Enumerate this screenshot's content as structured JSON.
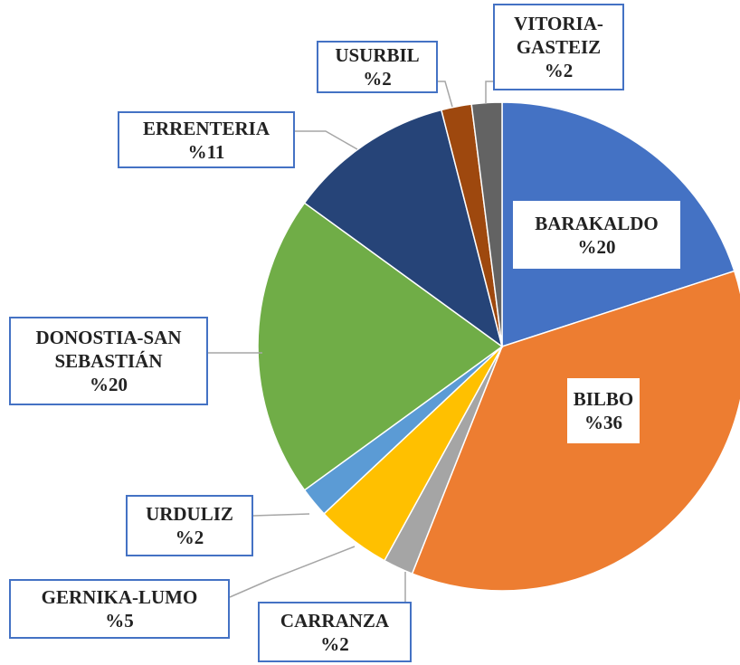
{
  "chart_data": {
    "type": "pie",
    "categories": [
      "BARAKALDO",
      "BILBO",
      "CARRANZA",
      "GERNIKA-LUMO",
      "URDULIZ",
      "DONOSTIA-SAN SEBASTIÁN",
      "ERRENTERIA",
      "USURBIL",
      "VITORIA-GASTEIZ"
    ],
    "values": [
      20,
      36,
      2,
      5,
      2,
      20,
      11,
      2,
      2
    ],
    "value_labels": [
      "%20",
      "%36",
      "%2",
      "%5",
      "%2",
      "%20",
      "%11",
      "%2",
      "%2"
    ],
    "colors": [
      "#4472c4",
      "#ed7d31",
      "#a5a5a5",
      "#ffc000",
      "#5b9bd5",
      "#70ad47",
      "#264478",
      "#9e480e",
      "#636363"
    ]
  }
}
